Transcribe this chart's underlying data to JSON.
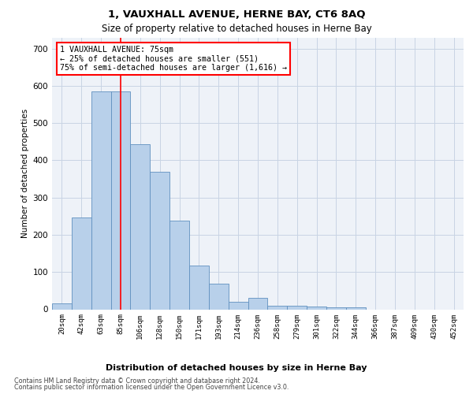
{
  "title": "1, VAUXHALL AVENUE, HERNE BAY, CT6 8AQ",
  "subtitle": "Size of property relative to detached houses in Herne Bay",
  "xlabel": "Distribution of detached houses by size in Herne Bay",
  "ylabel": "Number of detached properties",
  "bar_values": [
    15,
    247,
    585,
    585,
    443,
    370,
    238,
    118,
    68,
    20,
    30,
    10,
    10,
    7,
    5,
    5,
    0,
    0,
    0,
    0,
    0
  ],
  "bar_color": "#b8d0ea",
  "bar_edge_color": "#6090c0",
  "x_labels": [
    "20sqm",
    "42sqm",
    "63sqm",
    "85sqm",
    "106sqm",
    "128sqm",
    "150sqm",
    "171sqm",
    "193sqm",
    "214sqm",
    "236sqm",
    "258sqm",
    "279sqm",
    "301sqm",
    "322sqm",
    "344sqm",
    "366sqm",
    "387sqm",
    "409sqm",
    "430sqm",
    "452sqm"
  ],
  "ylim": [
    0,
    730
  ],
  "yticks": [
    0,
    100,
    200,
    300,
    400,
    500,
    600,
    700
  ],
  "red_line_x": 3.0,
  "annotation_text": "1 VAUXHALL AVENUE: 75sqm\n← 25% of detached houses are smaller (551)\n75% of semi-detached houses are larger (1,616) →",
  "bg_color": "#eef2f8",
  "grid_color": "#c8d4e4",
  "footer_line1": "Contains HM Land Registry data © Crown copyright and database right 2024.",
  "footer_line2": "Contains public sector information licensed under the Open Government Licence v3.0."
}
